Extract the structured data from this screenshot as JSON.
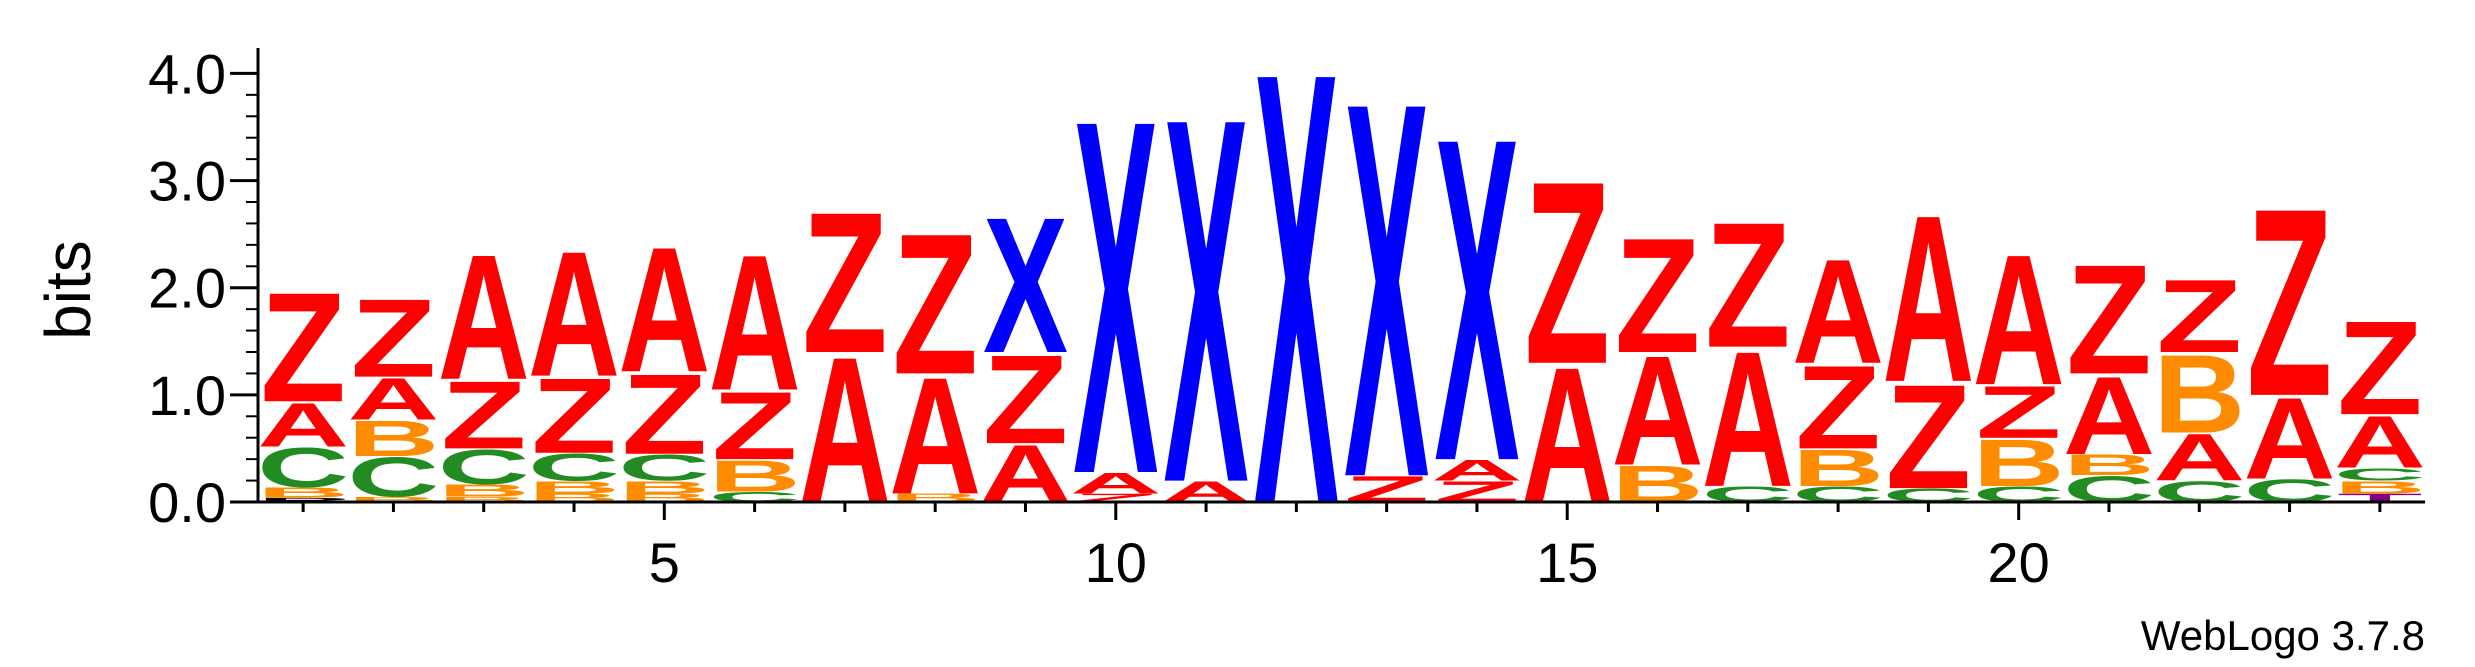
{
  "chart_data": {
    "type": "sequence-logo",
    "ylabel": "bits",
    "ylim": [
      0,
      4.2
    ],
    "yticks": [
      "0.0",
      "1.0",
      "2.0",
      "3.0",
      "4.0"
    ],
    "xticks": [
      5,
      10,
      15,
      20
    ],
    "xlim": [
      0.5,
      24.5
    ],
    "footer": "WebLogo 3.7.8",
    "colors": {
      "A": "#ff0000",
      "Z": "#ff0000",
      "X": "#0000ff",
      "B": "#ff8c00",
      "C": "#228b22",
      "T": "#800080"
    },
    "positions": [
      {
        "pos": 1,
        "stack": [
          [
            "P",
            0.04
          ],
          [
            "B",
            0.1
          ],
          [
            "C",
            0.38
          ],
          [
            "A",
            0.42
          ],
          [
            "Z",
            1.05
          ]
        ]
      },
      {
        "pos": 2,
        "stack": [
          [
            "B",
            0.05
          ],
          [
            "C",
            0.38
          ],
          [
            "B",
            0.34
          ],
          [
            "A",
            0.4
          ],
          [
            "Z",
            0.75
          ]
        ]
      },
      {
        "pos": 3,
        "stack": [
          [
            "B",
            0.05
          ],
          [
            "B",
            0.12
          ],
          [
            "C",
            0.33
          ],
          [
            "Z",
            0.65
          ],
          [
            "A",
            1.2
          ]
        ]
      },
      {
        "pos": 4,
        "stack": [
          [
            "B",
            0.08
          ],
          [
            "B",
            0.12
          ],
          [
            "C",
            0.26
          ],
          [
            "Z",
            0.72
          ],
          [
            "A",
            1.2
          ]
        ]
      },
      {
        "pos": 5,
        "stack": [
          [
            "B",
            0.08
          ],
          [
            "B",
            0.12
          ],
          [
            "C",
            0.25
          ],
          [
            "Z",
            0.77
          ],
          [
            "A",
            1.2
          ]
        ]
      },
      {
        "pos": 6,
        "stack": [
          [
            "C",
            0.1
          ],
          [
            "B",
            0.3
          ],
          [
            "Z",
            0.65
          ],
          [
            "A",
            1.3
          ]
        ]
      },
      {
        "pos": 7,
        "stack": [
          [
            "A",
            1.4
          ],
          [
            "Z",
            1.35
          ]
        ]
      },
      {
        "pos": 8,
        "stack": [
          [
            "B",
            0.08
          ],
          [
            "A",
            1.12
          ],
          [
            "Z",
            1.35
          ]
        ]
      },
      {
        "pos": 9,
        "stack": [
          [
            "A",
            0.55
          ],
          [
            "Z",
            0.85
          ],
          [
            "X",
            1.3
          ]
        ]
      },
      {
        "pos": 10,
        "stack": [
          [
            "Z",
            0.08
          ],
          [
            "A",
            0.2
          ],
          [
            "X",
            3.4
          ]
        ]
      },
      {
        "pos": 11,
        "stack": [
          [
            "A",
            0.2
          ],
          [
            "X",
            3.5
          ]
        ]
      },
      {
        "pos": 12,
        "stack": [
          [
            "X",
            4.15
          ]
        ]
      },
      {
        "pos": 13,
        "stack": [
          [
            "Z",
            0.25
          ],
          [
            "X",
            3.6
          ]
        ]
      },
      {
        "pos": 14,
        "stack": [
          [
            "Z",
            0.2
          ],
          [
            "A",
            0.2
          ],
          [
            "X",
            3.1
          ]
        ]
      },
      {
        "pos": 15,
        "stack": [
          [
            "A",
            1.3
          ],
          [
            "Z",
            1.75
          ]
        ]
      },
      {
        "pos": 16,
        "stack": [
          [
            "B",
            0.35
          ],
          [
            "A",
            1.05
          ],
          [
            "Z",
            1.1
          ]
        ]
      },
      {
        "pos": 17,
        "stack": [
          [
            "C",
            0.15
          ],
          [
            "A",
            1.3
          ],
          [
            "Z",
            1.2
          ]
        ]
      },
      {
        "pos": 18,
        "stack": [
          [
            "C",
            0.15
          ],
          [
            "B",
            0.35
          ],
          [
            "Z",
            0.8
          ],
          [
            "A",
            1.0
          ]
        ]
      },
      {
        "pos": 19,
        "stack": [
          [
            "C",
            0.13
          ],
          [
            "Z",
            1.0
          ],
          [
            "A",
            1.6
          ]
        ]
      },
      {
        "pos": 20,
        "stack": [
          [
            "C",
            0.15
          ],
          [
            "B",
            0.45
          ],
          [
            "Z",
            0.5
          ],
          [
            "A",
            1.25
          ]
        ]
      },
      {
        "pos": 21,
        "stack": [
          [
            "C",
            0.25
          ],
          [
            "B",
            0.2
          ],
          [
            "A",
            0.75
          ],
          [
            "Z",
            1.05
          ]
        ]
      },
      {
        "pos": 22,
        "stack": [
          [
            "C",
            0.2
          ],
          [
            "A",
            0.45
          ],
          [
            "B",
            0.75
          ],
          [
            "Z",
            0.7
          ]
        ]
      },
      {
        "pos": 23,
        "stack": [
          [
            "C",
            0.22
          ],
          [
            "A",
            0.78
          ],
          [
            "Z",
            1.8
          ]
        ]
      },
      {
        "pos": 24,
        "stack": [
          [
            "T",
            0.08
          ],
          [
            "B",
            0.12
          ],
          [
            "C",
            0.12
          ],
          [
            "A",
            0.5
          ],
          [
            "Z",
            0.9
          ]
        ]
      }
    ]
  }
}
